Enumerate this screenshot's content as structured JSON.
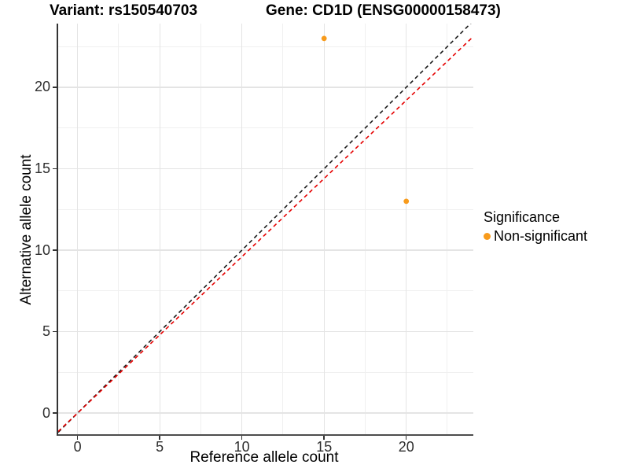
{
  "chart_data": {
    "type": "scatter",
    "title_left": "Variant: rs150540703",
    "title_right": "Gene: CD1D (ENSG00000158473)",
    "xlabel": "Reference allele count",
    "ylabel": "Alternative allele count",
    "xlim": [
      -1.18,
      24.08
    ],
    "ylim": [
      -1.3,
      23.91
    ],
    "x_major_ticks": [
      0,
      5,
      10,
      15,
      20
    ],
    "x_minor_ticks": [
      2.5,
      7.5,
      12.5,
      17.5,
      22.5
    ],
    "y_major_ticks": [
      0,
      5,
      10,
      15,
      20
    ],
    "y_minor_ticks": [
      2.5,
      7.5,
      12.5,
      17.5,
      22.5
    ],
    "grid": true,
    "points": [
      {
        "x": 15,
        "y": 23,
        "series": "Non-significant"
      },
      {
        "x": 20,
        "y": 13,
        "series": "Non-significant"
      }
    ],
    "lines": [
      {
        "name": "identity-line",
        "slope": 1,
        "intercept": 0,
        "color": "#1a1a1a",
        "dash": "5,4"
      },
      {
        "name": "fit-line",
        "slope": 0.96,
        "intercept": 0,
        "color": "#e50000",
        "dash": "5,4"
      }
    ],
    "legend": {
      "title": "Significance",
      "position": "right",
      "items": [
        {
          "label": "Non-significant",
          "color": "#f89b1c"
        }
      ]
    },
    "colors": {
      "point": "#f89b1c",
      "grid_major": "#e4e4e4",
      "grid_minor": "#f0f0f0",
      "axis_line": "#333333",
      "tick_text": "#2e2e2e"
    }
  }
}
